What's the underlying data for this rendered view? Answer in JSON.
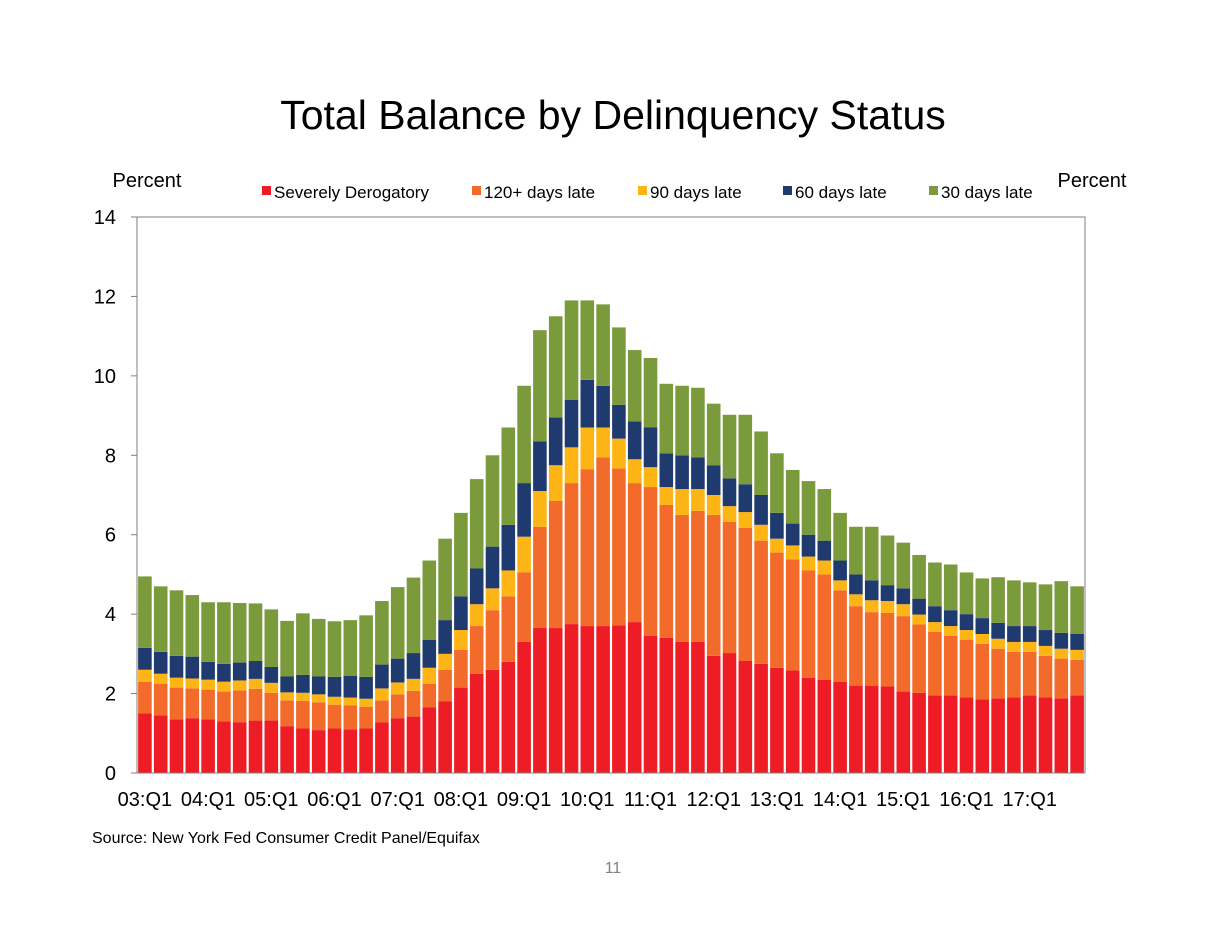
{
  "slide": {
    "source": "Source: New York Fed Consumer Credit Panel/Equifax",
    "page_number": "11"
  },
  "chart_data": {
    "type": "bar",
    "stacked": true,
    "title": "Total Balance by Delinquency Status",
    "ylabel_left": "Percent",
    "ylabel_right": "Percent",
    "ylim": [
      0,
      14
    ],
    "yticks": [
      0,
      2,
      4,
      6,
      8,
      10,
      12,
      14
    ],
    "xtick_labels": [
      "03:Q1",
      "04:Q1",
      "05:Q1",
      "06:Q1",
      "07:Q1",
      "08:Q1",
      "09:Q1",
      "10:Q1",
      "11:Q1",
      "12:Q1",
      "13:Q1",
      "14:Q1",
      "15:Q1",
      "16:Q1",
      "17:Q1"
    ],
    "grid": false,
    "legend_position": "top",
    "categories": [
      "03:Q1",
      "03:Q2",
      "03:Q3",
      "03:Q4",
      "04:Q1",
      "04:Q2",
      "04:Q3",
      "04:Q4",
      "05:Q1",
      "05:Q2",
      "05:Q3",
      "05:Q4",
      "06:Q1",
      "06:Q2",
      "06:Q3",
      "06:Q4",
      "07:Q1",
      "07:Q2",
      "07:Q3",
      "07:Q4",
      "08:Q1",
      "08:Q2",
      "08:Q3",
      "08:Q4",
      "09:Q1",
      "09:Q2",
      "09:Q3",
      "09:Q4",
      "10:Q1",
      "10:Q2",
      "10:Q3",
      "10:Q4",
      "11:Q1",
      "11:Q2",
      "11:Q3",
      "11:Q4",
      "12:Q1",
      "12:Q2",
      "12:Q3",
      "12:Q4",
      "13:Q1",
      "13:Q2",
      "13:Q3",
      "13:Q4",
      "14:Q1",
      "14:Q2",
      "14:Q3",
      "14:Q4",
      "15:Q1",
      "15:Q2",
      "15:Q3",
      "15:Q4",
      "16:Q1",
      "16:Q2",
      "16:Q3",
      "16:Q4",
      "17:Q1",
      "17:Q2",
      "17:Q3",
      "17:Q4"
    ],
    "series": [
      {
        "name": "Severely Derogatory",
        "color": "#ee1c25",
        "values": [
          1.5,
          1.45,
          1.35,
          1.38,
          1.35,
          1.3,
          1.28,
          1.32,
          1.32,
          1.18,
          1.12,
          1.08,
          1.12,
          1.1,
          1.12,
          1.28,
          1.38,
          1.42,
          1.65,
          1.8,
          2.15,
          2.5,
          2.6,
          2.8,
          3.3,
          3.65,
          3.65,
          3.75,
          3.7,
          3.7,
          3.72,
          3.8,
          3.45,
          3.4,
          3.3,
          3.3,
          2.95,
          3.02,
          2.82,
          2.75,
          2.65,
          2.58,
          2.4,
          2.35,
          2.3,
          2.2,
          2.2,
          2.18,
          2.05,
          2.02,
          1.95,
          1.95,
          1.9,
          1.85,
          1.88,
          1.9,
          1.95,
          1.9,
          1.88,
          1.95
        ]
      },
      {
        "name": "120+ days late",
        "color": "#f26b2b",
        "values": [
          0.8,
          0.8,
          0.8,
          0.75,
          0.75,
          0.75,
          0.8,
          0.8,
          0.7,
          0.65,
          0.7,
          0.7,
          0.6,
          0.6,
          0.55,
          0.55,
          0.6,
          0.65,
          0.6,
          0.8,
          0.95,
          1.2,
          1.5,
          1.65,
          1.75,
          2.55,
          3.2,
          3.55,
          3.95,
          4.25,
          3.95,
          3.5,
          3.75,
          3.35,
          3.2,
          3.3,
          3.55,
          3.3,
          3.35,
          3.1,
          2.9,
          2.8,
          2.7,
          2.65,
          2.3,
          2.0,
          1.85,
          1.85,
          1.9,
          1.72,
          1.6,
          1.5,
          1.45,
          1.4,
          1.25,
          1.15,
          1.1,
          1.05,
          1.0,
          0.9
        ]
      },
      {
        "name": "90 days late",
        "color": "#fdb515",
        "values": [
          0.3,
          0.25,
          0.25,
          0.25,
          0.25,
          0.25,
          0.25,
          0.25,
          0.25,
          0.2,
          0.2,
          0.2,
          0.2,
          0.2,
          0.2,
          0.3,
          0.3,
          0.3,
          0.4,
          0.4,
          0.5,
          0.55,
          0.55,
          0.65,
          0.9,
          0.9,
          0.9,
          0.9,
          1.05,
          0.75,
          0.75,
          0.6,
          0.5,
          0.45,
          0.65,
          0.55,
          0.5,
          0.4,
          0.4,
          0.4,
          0.35,
          0.35,
          0.35,
          0.35,
          0.25,
          0.3,
          0.3,
          0.3,
          0.3,
          0.25,
          0.25,
          0.25,
          0.25,
          0.25,
          0.25,
          0.25,
          0.25,
          0.25,
          0.25,
          0.25
        ]
      },
      {
        "name": "60 days late",
        "color": "#1f3a6e",
        "values": [
          0.55,
          0.55,
          0.55,
          0.55,
          0.45,
          0.45,
          0.45,
          0.45,
          0.4,
          0.4,
          0.45,
          0.45,
          0.5,
          0.55,
          0.55,
          0.6,
          0.6,
          0.65,
          0.7,
          0.85,
          0.85,
          0.9,
          1.05,
          1.15,
          1.35,
          1.25,
          1.2,
          1.2,
          1.2,
          1.05,
          0.85,
          0.95,
          1.0,
          0.85,
          0.85,
          0.8,
          0.75,
          0.7,
          0.7,
          0.75,
          0.65,
          0.55,
          0.55,
          0.5,
          0.5,
          0.5,
          0.5,
          0.4,
          0.4,
          0.4,
          0.4,
          0.4,
          0.4,
          0.4,
          0.4,
          0.4,
          0.4,
          0.4,
          0.4,
          0.4
        ]
      },
      {
        "name": "30 days late",
        "color": "#7a9a3c",
        "values": [
          1.8,
          1.65,
          1.65,
          1.55,
          1.5,
          1.55,
          1.5,
          1.45,
          1.45,
          1.4,
          1.55,
          1.45,
          1.4,
          1.4,
          1.55,
          1.6,
          1.8,
          1.9,
          2.0,
          2.05,
          2.1,
          2.25,
          2.3,
          2.45,
          2.45,
          2.8,
          2.55,
          2.5,
          2.0,
          2.05,
          1.95,
          1.8,
          1.75,
          1.75,
          1.75,
          1.75,
          1.55,
          1.6,
          1.75,
          1.6,
          1.5,
          1.35,
          1.35,
          1.3,
          1.2,
          1.2,
          1.35,
          1.25,
          1.15,
          1.1,
          1.1,
          1.15,
          1.05,
          1.0,
          1.15,
          1.15,
          1.1,
          1.15,
          1.3,
          1.2
        ]
      }
    ]
  }
}
